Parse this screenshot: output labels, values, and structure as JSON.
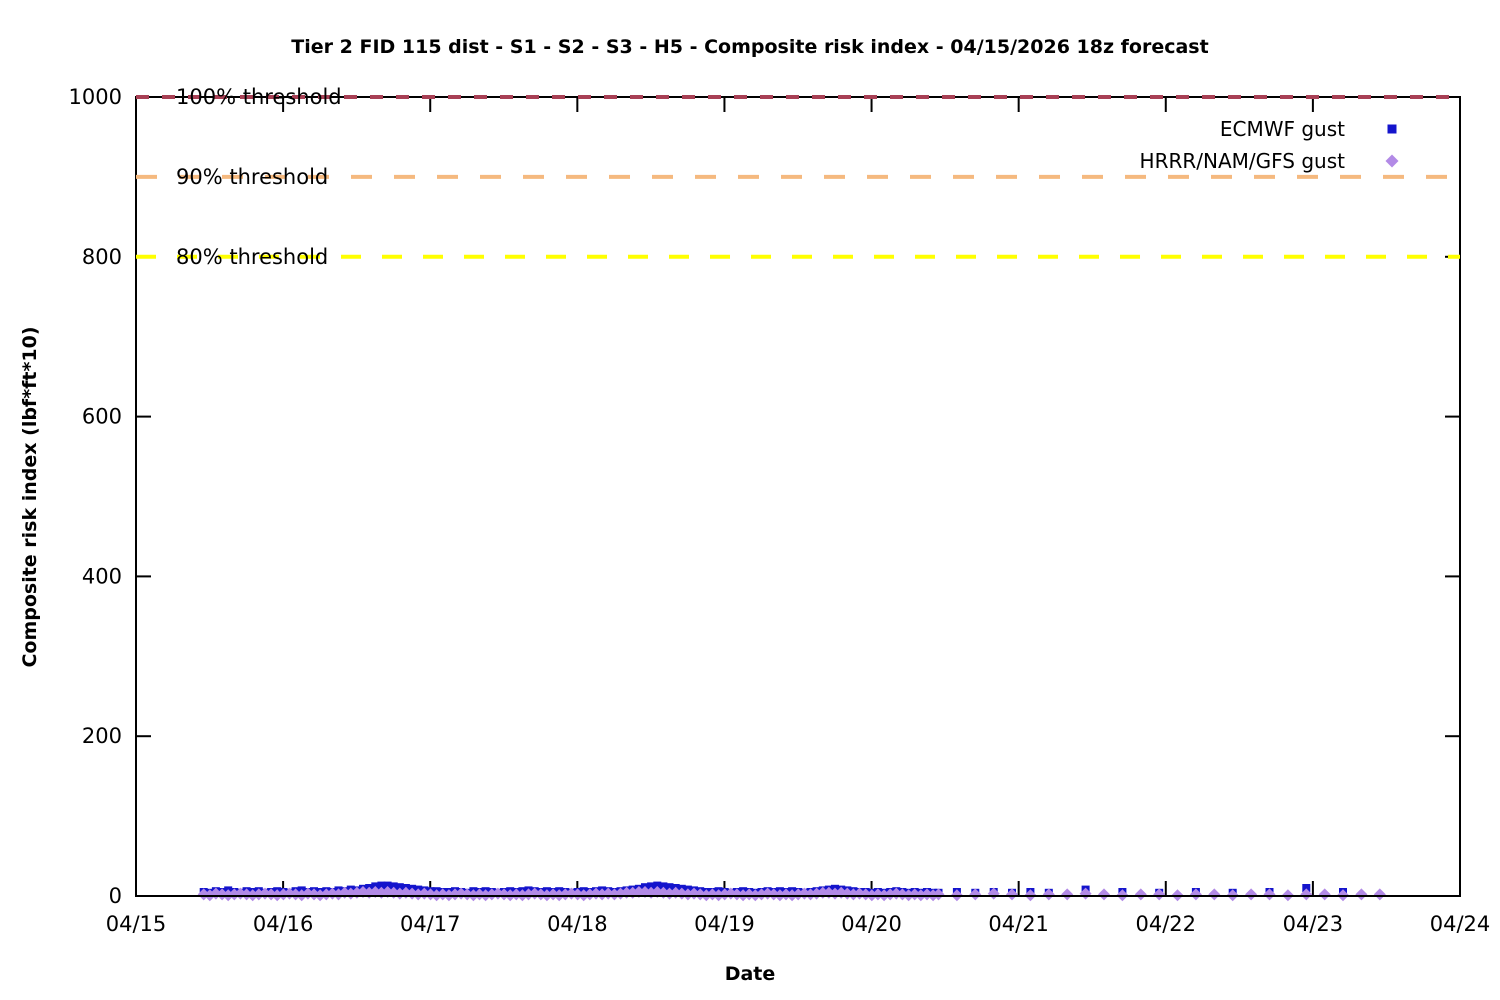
{
  "window": {
    "background": "#ffffff"
  },
  "chart_data": {
    "type": "scatter",
    "title": "Tier 2 FID 115 dist - S1 - S2 - S3 - H5 - Composite risk index - 04/15/2026 18z forecast",
    "xlabel": "Date",
    "ylabel": "Composite risk index (lbf*ft*10)",
    "grid": false,
    "legend_position": "top-right-inside",
    "x_axis": {
      "tick_labels": [
        "04/15",
        "04/16",
        "04/17",
        "04/18",
        "04/19",
        "04/20",
        "04/21",
        "04/22",
        "04/23",
        "04/24"
      ],
      "range_days": [
        0,
        9
      ]
    },
    "y_axis": {
      "ticks": [
        0,
        200,
        400,
        600,
        800,
        1000
      ],
      "range": [
        0,
        1000
      ]
    },
    "thresholds": [
      {
        "label": "100% threshold",
        "value": 1000,
        "color": "#a84055",
        "dash": "13,13"
      },
      {
        "label": "90% threshold",
        "value": 900,
        "color": "#f5b97f",
        "dash": "21,22"
      },
      {
        "label": "80% threshold",
        "value": 800,
        "color": "#ffff00",
        "dash": "20,21"
      }
    ],
    "legend": [
      {
        "label": "ECMWF gust",
        "marker": "square",
        "color": "#1414cc"
      },
      {
        "label": "HRRR/NAM/GFS gust",
        "marker": "diamond",
        "color": "#b28ae6"
      }
    ],
    "series": [
      {
        "name": "ECMWF gust",
        "marker": "square",
        "color": "#1414cc",
        "size": 8,
        "dense": {
          "x_start_day": 0.46,
          "x_step_day": 0.0416667,
          "values": [
            5,
            4,
            6,
            5,
            7,
            5,
            4,
            6,
            5,
            6,
            4,
            5,
            6,
            5,
            4,
            6,
            7,
            5,
            6,
            5,
            6,
            5,
            7,
            6,
            8,
            7,
            9,
            10,
            12,
            13,
            13,
            12,
            11,
            10,
            9,
            8,
            7,
            6,
            6,
            5,
            5,
            6,
            5,
            4,
            6,
            5,
            6,
            5,
            4,
            5,
            6,
            5,
            6,
            7,
            6,
            5,
            6,
            5,
            6,
            5,
            4,
            5,
            6,
            5,
            6,
            7,
            6,
            5,
            6,
            7,
            8,
            9,
            11,
            12,
            13,
            12,
            11,
            10,
            9,
            8,
            7,
            6,
            5,
            5,
            6,
            5,
            4,
            5,
            6,
            5,
            4,
            5,
            6,
            5,
            6,
            5,
            6,
            5,
            4,
            5,
            6,
            7,
            8,
            9,
            8,
            7,
            6,
            5,
            5,
            4,
            5,
            4,
            5,
            6,
            5,
            4,
            5,
            4,
            5,
            4
          ]
        },
        "points": [
          [
            5.455,
            4
          ],
          [
            5.58,
            5
          ],
          [
            5.705,
            4
          ],
          [
            5.83,
            5
          ],
          [
            5.955,
            4
          ],
          [
            6.08,
            5
          ],
          [
            6.205,
            4
          ],
          [
            6.455,
            8
          ],
          [
            6.705,
            5
          ],
          [
            6.955,
            4
          ],
          [
            7.205,
            5
          ],
          [
            7.455,
            4
          ],
          [
            7.705,
            5
          ],
          [
            7.955,
            10
          ],
          [
            8.205,
            5
          ]
        ]
      },
      {
        "name": "HRRR/NAM/GFS gust",
        "marker": "diamond",
        "color": "#b28ae6",
        "size": 12,
        "dense": {
          "x_start_day": 0.46,
          "x_step_day": 0.0416667,
          "values": [
            2,
            1,
            3,
            2,
            1,
            2,
            3,
            2,
            1,
            2,
            3,
            2,
            1,
            2,
            3,
            2,
            1,
            3,
            2,
            1,
            2,
            3,
            2,
            4,
            3,
            4,
            5,
            4,
            5,
            4,
            5,
            4,
            3,
            4,
            3,
            2,
            3,
            2,
            1,
            2,
            1,
            2,
            3,
            2,
            1,
            2,
            1,
            2,
            3,
            2,
            1,
            2,
            1,
            2,
            3,
            2,
            1,
            2,
            1,
            2,
            3,
            2,
            1,
            2,
            3,
            2,
            3,
            2,
            3,
            4,
            4,
            5,
            5,
            4,
            5,
            4,
            3,
            4,
            3,
            2,
            3,
            2,
            1,
            2,
            1,
            2,
            3,
            2,
            1,
            2,
            1,
            2,
            3,
            2,
            1,
            2,
            1,
            2,
            3,
            2,
            3,
            4,
            4,
            3,
            4,
            3,
            2,
            3,
            2,
            1,
            2,
            1,
            2,
            3,
            2,
            1,
            2,
            1,
            2,
            1
          ]
        },
        "points": [
          [
            5.455,
            2
          ],
          [
            5.58,
            1
          ],
          [
            5.705,
            2
          ],
          [
            5.83,
            3
          ],
          [
            5.955,
            2
          ],
          [
            6.08,
            1
          ],
          [
            6.205,
            2
          ],
          [
            6.33,
            2
          ],
          [
            6.455,
            3
          ],
          [
            6.58,
            2
          ],
          [
            6.705,
            1
          ],
          [
            6.83,
            2
          ],
          [
            6.955,
            2
          ],
          [
            7.08,
            1
          ],
          [
            7.205,
            2
          ],
          [
            7.33,
            2
          ],
          [
            7.455,
            1
          ],
          [
            7.58,
            2
          ],
          [
            7.705,
            2
          ],
          [
            7.83,
            1
          ],
          [
            7.955,
            2
          ],
          [
            8.08,
            2
          ],
          [
            8.205,
            1
          ],
          [
            8.33,
            2
          ],
          [
            8.455,
            2
          ]
        ]
      }
    ]
  }
}
